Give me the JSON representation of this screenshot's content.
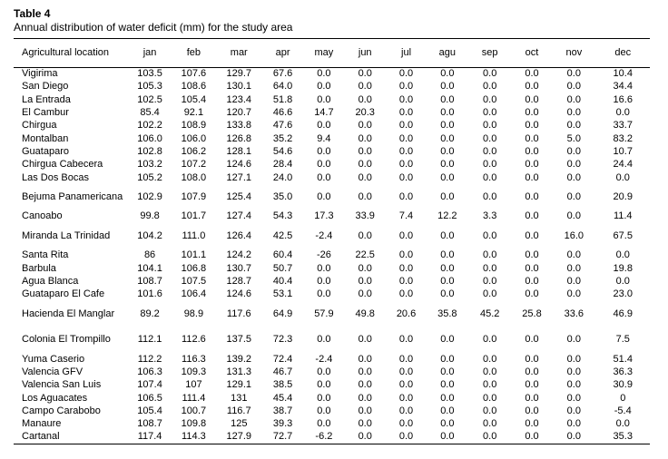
{
  "table_label": "Table 4",
  "caption": "Annual distribution of water deficit (mm) for the study area",
  "columns": [
    "Agricultural location",
    "jan",
    "feb",
    "mar",
    "apr",
    "may",
    "jun",
    "jul",
    "agu",
    "sep",
    "oct",
    "nov",
    "dec"
  ],
  "rows": [
    [
      "Vigirima",
      "103.5",
      "107.6",
      "129.7",
      "67.6",
      "0.0",
      "0.0",
      "0.0",
      "0.0",
      "0.0",
      "0.0",
      "0.0",
      "10.4"
    ],
    [
      "San Diego",
      "105.3",
      "108.6",
      "130.1",
      "64.0",
      "0.0",
      "0.0",
      "0.0",
      "0.0",
      "0.0",
      "0.0",
      "0.0",
      "34.4"
    ],
    [
      "La Entrada",
      "102.5",
      "105.4",
      "123.4",
      "51.8",
      "0.0",
      "0.0",
      "0.0",
      "0.0",
      "0.0",
      "0.0",
      "0.0",
      "16.6"
    ],
    [
      "El Cambur",
      "85.4",
      "92.1",
      "120.7",
      "46.6",
      "14.7",
      "20.3",
      "0.0",
      "0.0",
      "0.0",
      "0.0",
      "0.0",
      "0.0"
    ],
    [
      "Chirgua",
      "102.2",
      "108.9",
      "133.8",
      "47.6",
      "0.0",
      "0.0",
      "0.0",
      "0.0",
      "0.0",
      "0.0",
      "0.0",
      "33.7"
    ],
    [
      "Montalban",
      "106.0",
      "106.0",
      "126.8",
      "35.2",
      "9.4",
      "0.0",
      "0.0",
      "0.0",
      "0.0",
      "0.0",
      "5.0",
      "83.2"
    ],
    [
      "Guataparo",
      "102.8",
      "106.2",
      "128.1",
      "54.6",
      "0.0",
      "0.0",
      "0.0",
      "0.0",
      "0.0",
      "0.0",
      "0.0",
      "10.7"
    ],
    [
      "Chirgua Cabecera",
      "103.2",
      "107.2",
      "124.6",
      "28.4",
      "0.0",
      "0.0",
      "0.0",
      "0.0",
      "0.0",
      "0.0",
      "0.0",
      "24.4"
    ],
    [
      "Las Dos Bocas",
      "105.2",
      "108.0",
      "127.1",
      "24.0",
      "0.0",
      "0.0",
      "0.0",
      "0.0",
      "0.0",
      "0.0",
      "0.0",
      "0.0"
    ],
    [
      "Bejuma Panamericana",
      "102.9",
      "107.9",
      "125.4",
      "35.0",
      "0.0",
      "0.0",
      "0.0",
      "0.0",
      "0.0",
      "0.0",
      "0.0",
      "20.9"
    ],
    [
      "Canoabo",
      "99.8",
      "101.7",
      "127.4",
      "54.3",
      "17.3",
      "33.9",
      "7.4",
      "12.2",
      "3.3",
      "0.0",
      "0.0",
      "11.4"
    ],
    [
      "Miranda La Trinidad",
      "104.2",
      "111.0",
      "126.4",
      "42.5",
      "-2.4",
      "0.0",
      "0.0",
      "0.0",
      "0.0",
      "0.0",
      "16.0",
      "67.5"
    ],
    [
      "Santa Rita",
      "86",
      "101.1",
      "124.2",
      "60.4",
      "-26",
      "22.5",
      "0.0",
      "0.0",
      "0.0",
      "0.0",
      "0.0",
      "0.0"
    ],
    [
      "Barbula",
      "104.1",
      "106.8",
      "130.7",
      "50.7",
      "0.0",
      "0.0",
      "0.0",
      "0.0",
      "0.0",
      "0.0",
      "0.0",
      "19.8"
    ],
    [
      "Agua Blanca",
      "108.7",
      "107.5",
      "128.7",
      "40.4",
      "0.0",
      "0.0",
      "0.0",
      "0.0",
      "0.0",
      "0.0",
      "0.0",
      "0.0"
    ],
    [
      "Guataparo El Cafe",
      "101.6",
      "106.4",
      "124.6",
      "53.1",
      "0.0",
      "0.0",
      "0.0",
      "0.0",
      "0.0",
      "0.0",
      "0.0",
      "23.0"
    ],
    [
      "Hacienda El Manglar",
      "89.2",
      "98.9",
      "117.6",
      "64.9",
      "57.9",
      "49.8",
      "20.6",
      "35.8",
      "45.2",
      "25.8",
      "33.6",
      "46.9"
    ],
    [
      "Colonia El Trompillo",
      "112.1",
      "112.6",
      "137.5",
      "72.3",
      "0.0",
      "0.0",
      "0.0",
      "0.0",
      "0.0",
      "0.0",
      "0.0",
      "7.5"
    ],
    [
      "Yuma Caserio",
      "112.2",
      "116.3",
      "139.2",
      "72.4",
      "-2.4",
      "0.0",
      "0.0",
      "0.0",
      "0.0",
      "0.0",
      "0.0",
      "51.4"
    ],
    [
      "Valencia GFV",
      "106.3",
      "109.3",
      "131.3",
      "46.7",
      "0.0",
      "0.0",
      "0.0",
      "0.0",
      "0.0",
      "0.0",
      "0.0",
      "36.3"
    ],
    [
      "Valencia San Luis",
      "107.4",
      "107",
      "129.1",
      "38.5",
      "0.0",
      "0.0",
      "0.0",
      "0.0",
      "0.0",
      "0.0",
      "0.0",
      "30.9"
    ],
    [
      "Los Aguacates",
      "106.5",
      "111.4",
      "131",
      "45.4",
      "0.0",
      "0.0",
      "0.0",
      "0.0",
      "0.0",
      "0.0",
      "0.0",
      "0"
    ],
    [
      "Campo Carabobo",
      "105.4",
      "100.7",
      "116.7",
      "38.7",
      "0.0",
      "0.0",
      "0.0",
      "0.0",
      "0.0",
      "0.0",
      "0.0",
      "-5.4"
    ],
    [
      "Manaure",
      "108.7",
      "109.8",
      "125",
      "39.3",
      "0.0",
      "0.0",
      "0.0",
      "0.0",
      "0.0",
      "0.0",
      "0.0",
      "0.0"
    ],
    [
      "Cartanal",
      "117.4",
      "114.3",
      "127.9",
      "72.7",
      "-6.2",
      "0.0",
      "0.0",
      "0.0",
      "0.0",
      "0.0",
      "0.0",
      "35.3"
    ]
  ]
}
